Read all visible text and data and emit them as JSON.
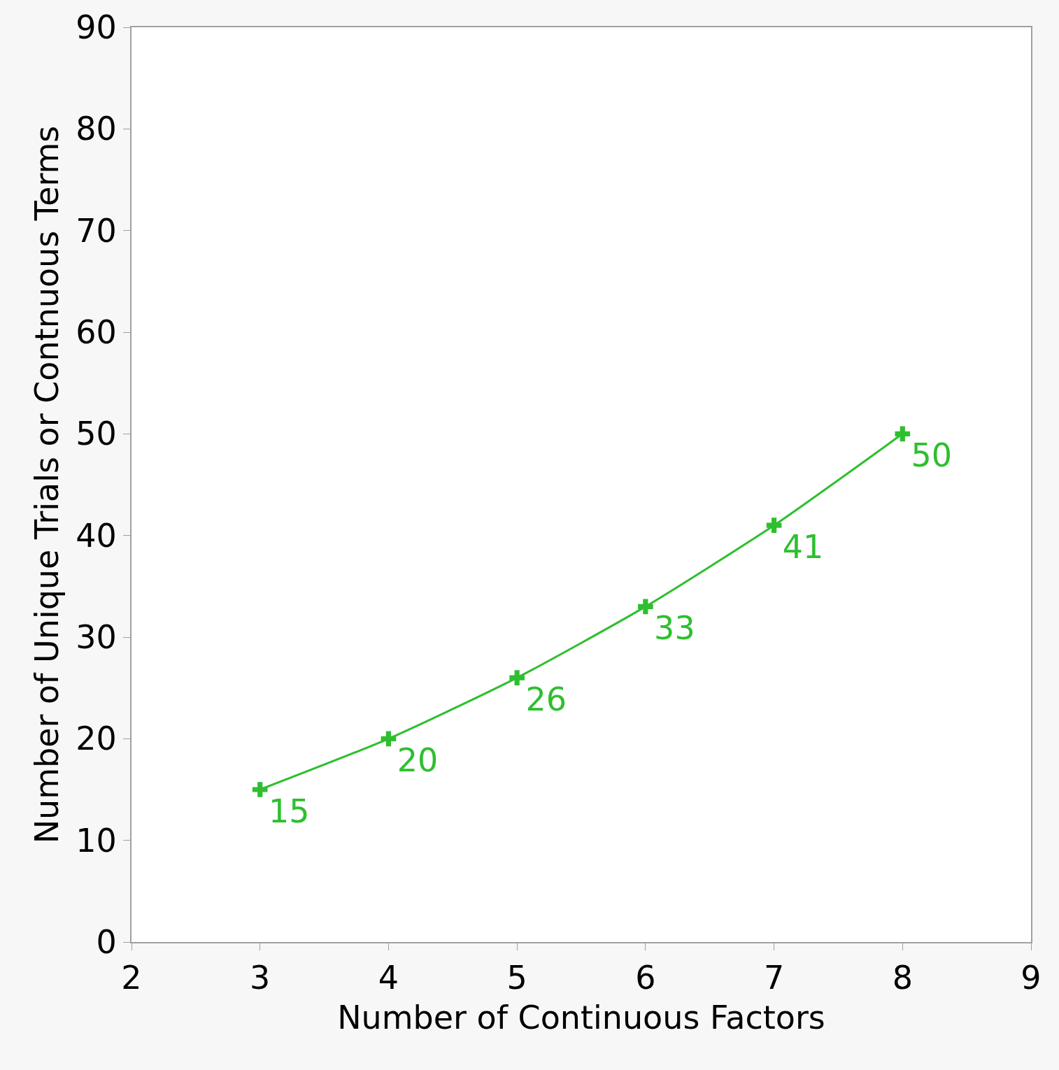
{
  "chart_data": {
    "type": "line",
    "xlabel": "Number of Continuous Factors",
    "ylabel": "Number of Unique Trials or Contnuous Terms",
    "x": [
      3,
      4,
      5,
      6,
      7,
      8
    ],
    "series": [
      {
        "color": "#2ebf2e",
        "values": [
          15,
          20,
          26,
          33,
          41,
          50
        ]
      }
    ],
    "xlim": [
      2,
      9
    ],
    "xticks": [
      2,
      3,
      4,
      5,
      6,
      7,
      8,
      9
    ],
    "ylim": [
      0,
      90
    ],
    "yticks": [
      0,
      10,
      20,
      30,
      40,
      50,
      60,
      70,
      80,
      90
    ],
    "marker": "cross",
    "line_style": "solid",
    "data_labels": true
  }
}
